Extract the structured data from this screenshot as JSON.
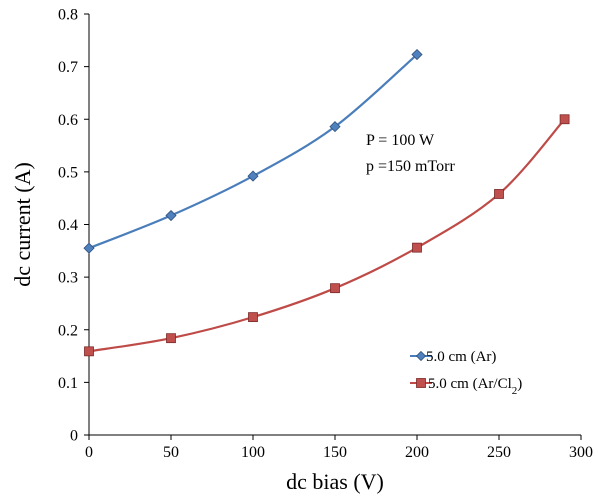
{
  "chart_data": {
    "type": "line",
    "xlabel": "dc bias (V)",
    "ylabel": "dc current (A)",
    "xlim": [
      0,
      300
    ],
    "ylim": [
      0,
      0.8
    ],
    "x_ticks": [
      0,
      50,
      100,
      150,
      200,
      250,
      300
    ],
    "y_ticks": [
      0,
      0.1,
      0.2,
      0.3,
      0.4,
      0.5,
      0.6,
      0.7,
      0.8
    ],
    "x_tick_labels": [
      "0",
      "50",
      "100",
      "150",
      "200",
      "250",
      "300"
    ],
    "y_tick_labels": [
      "0",
      "0.1",
      "0.2",
      "0.3",
      "0.4",
      "0.5",
      "0.6",
      "0.7",
      "0.8"
    ],
    "grid": false,
    "legend_position": "lower-right",
    "annotations": [
      "P = 100 W",
      "p =150 mTorr"
    ],
    "series": [
      {
        "name": "5.0 cm (Ar)",
        "legend_main": "5.0 cm (Ar)",
        "legend_sub": "",
        "legend_tail": "",
        "color": "#4a7ebb",
        "marker_fill": "#4f81bd",
        "marker": "diamond",
        "x": [
          0,
          50,
          100,
          150,
          200
        ],
        "y": [
          0.355,
          0.417,
          0.492,
          0.586,
          0.723
        ]
      },
      {
        "name": "5.0 cm (Ar/Cl2)",
        "legend_main": "5.0 cm (Ar/Cl",
        "legend_sub": "2",
        "legend_tail": ")",
        "color": "#be4b48",
        "marker_fill": "#c0504d",
        "marker": "square",
        "x": [
          0,
          50,
          100,
          150,
          200,
          250,
          290
        ],
        "y": [
          0.159,
          0.184,
          0.224,
          0.279,
          0.356,
          0.458,
          0.6
        ]
      }
    ]
  }
}
